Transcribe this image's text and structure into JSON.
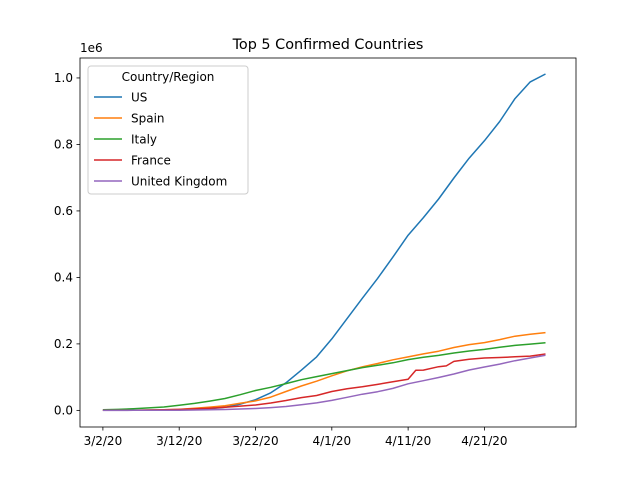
{
  "chart_data": {
    "type": "line",
    "title": "Top 5 Confirmed Countries",
    "xlabel": "",
    "ylabel": "",
    "y_scale_label": "1e6",
    "x_dates": [
      "3/2/20",
      "3/12/20",
      "3/22/20",
      "4/1/20",
      "4/11/20",
      "4/21/20"
    ],
    "x_range": [
      "2020-03-02",
      "2020-04-30"
    ],
    "ylim": [
      -0.05,
      1.06
    ],
    "yticks": [
      0.0,
      0.2,
      0.4,
      0.6,
      0.8,
      1.0
    ],
    "ytick_labels": [
      "0.0",
      "0.2",
      "0.4",
      "0.6",
      "0.8",
      "1.0"
    ],
    "grid": false,
    "legend": {
      "title": "Country/Region",
      "placement": "top-left"
    },
    "series": [
      {
        "name": "US",
        "color": "#1f77b4",
        "points": [
          [
            "2020-03-02",
            0.0001
          ],
          [
            "2020-03-06",
            0.0003
          ],
          [
            "2020-03-10",
            0.001
          ],
          [
            "2020-03-14",
            0.0027
          ],
          [
            "2020-03-16",
            0.0046
          ],
          [
            "2020-03-18",
            0.0092
          ],
          [
            "2020-03-20",
            0.019
          ],
          [
            "2020-03-22",
            0.032
          ],
          [
            "2020-03-24",
            0.053
          ],
          [
            "2020-03-26",
            0.083
          ],
          [
            "2020-03-28",
            0.121
          ],
          [
            "2020-03-30",
            0.161
          ],
          [
            "2020-04-01",
            0.215
          ],
          [
            "2020-04-03",
            0.276
          ],
          [
            "2020-04-05",
            0.337
          ],
          [
            "2020-04-07",
            0.397
          ],
          [
            "2020-04-09",
            0.461
          ],
          [
            "2020-04-11",
            0.527
          ],
          [
            "2020-04-13",
            0.58
          ],
          [
            "2020-04-15",
            0.636
          ],
          [
            "2020-04-17",
            0.699
          ],
          [
            "2020-04-19",
            0.759
          ],
          [
            "2020-04-21",
            0.811
          ],
          [
            "2020-04-23",
            0.869
          ],
          [
            "2020-04-25",
            0.938
          ],
          [
            "2020-04-27",
            0.988
          ],
          [
            "2020-04-29",
            1.012
          ]
        ]
      },
      {
        "name": "Spain",
        "color": "#ff7f0e",
        "points": [
          [
            "2020-03-02",
            0.0001
          ],
          [
            "2020-03-06",
            0.0004
          ],
          [
            "2020-03-10",
            0.0016
          ],
          [
            "2020-03-12",
            0.003
          ],
          [
            "2020-03-14",
            0.0064
          ],
          [
            "2020-03-16",
            0.0098
          ],
          [
            "2020-03-18",
            0.0138
          ],
          [
            "2020-03-20",
            0.0212
          ],
          [
            "2020-03-22",
            0.0284
          ],
          [
            "2020-03-24",
            0.0399
          ],
          [
            "2020-03-26",
            0.0569
          ],
          [
            "2020-03-28",
            0.0732
          ],
          [
            "2020-03-30",
            0.0877
          ],
          [
            "2020-04-01",
            0.104
          ],
          [
            "2020-04-03",
            0.119
          ],
          [
            "2020-04-05",
            0.131
          ],
          [
            "2020-04-07",
            0.141
          ],
          [
            "2020-04-09",
            0.152
          ],
          [
            "2020-04-11",
            0.161
          ],
          [
            "2020-04-13",
            0.17
          ],
          [
            "2020-04-15",
            0.178
          ],
          [
            "2020-04-17",
            0.189
          ],
          [
            "2020-04-19",
            0.198
          ],
          [
            "2020-04-21",
            0.204
          ],
          [
            "2020-04-23",
            0.213
          ],
          [
            "2020-04-25",
            0.223
          ],
          [
            "2020-04-27",
            0.229
          ],
          [
            "2020-04-29",
            0.234
          ]
        ]
      },
      {
        "name": "Italy",
        "color": "#2ca02c",
        "points": [
          [
            "2020-03-02",
            0.002
          ],
          [
            "2020-03-04",
            0.003
          ],
          [
            "2020-03-06",
            0.0046
          ],
          [
            "2020-03-08",
            0.0074
          ],
          [
            "2020-03-10",
            0.0101
          ],
          [
            "2020-03-12",
            0.0155
          ],
          [
            "2020-03-14",
            0.0211
          ],
          [
            "2020-03-16",
            0.0278
          ],
          [
            "2020-03-18",
            0.0357
          ],
          [
            "2020-03-20",
            0.0471
          ],
          [
            "2020-03-22",
            0.0597
          ],
          [
            "2020-03-24",
            0.0693
          ],
          [
            "2020-03-26",
            0.0805
          ],
          [
            "2020-03-28",
            0.0924
          ],
          [
            "2020-03-30",
            0.1017
          ],
          [
            "2020-04-01",
            0.1105
          ],
          [
            "2020-04-03",
            0.1196
          ],
          [
            "2020-04-05",
            0.1287
          ],
          [
            "2020-04-07",
            0.1355
          ],
          [
            "2020-04-09",
            0.1432
          ],
          [
            "2020-04-11",
            0.1527
          ],
          [
            "2020-04-13",
            0.1597
          ],
          [
            "2020-04-15",
            0.1655
          ],
          [
            "2020-04-17",
            0.1725
          ],
          [
            "2020-04-19",
            0.1785
          ],
          [
            "2020-04-21",
            0.1833
          ],
          [
            "2020-04-23",
            0.1896
          ],
          [
            "2020-04-25",
            0.1955
          ],
          [
            "2020-04-27",
            0.1994
          ],
          [
            "2020-04-29",
            0.2034
          ]
        ]
      },
      {
        "name": "France",
        "color": "#d62728",
        "points": [
          [
            "2020-03-02",
            0.0002
          ],
          [
            "2020-03-06",
            0.0006
          ],
          [
            "2020-03-10",
            0.0018
          ],
          [
            "2020-03-12",
            0.0029
          ],
          [
            "2020-03-14",
            0.0045
          ],
          [
            "2020-03-16",
            0.0067
          ],
          [
            "2020-03-18",
            0.0094
          ],
          [
            "2020-03-20",
            0.0129
          ],
          [
            "2020-03-22",
            0.0163
          ],
          [
            "2020-03-24",
            0.0222
          ],
          [
            "2020-03-26",
            0.0297
          ],
          [
            "2020-03-28",
            0.0383
          ],
          [
            "2020-03-30",
            0.0449
          ],
          [
            "2020-04-01",
            0.0567
          ],
          [
            "2020-04-03",
            0.0651
          ],
          [
            "2020-04-05",
            0.0708
          ],
          [
            "2020-04-07",
            0.0782
          ],
          [
            "2020-04-09",
            0.0863
          ],
          [
            "2020-04-11",
            0.0935
          ],
          [
            "2020-04-12",
            0.1206
          ],
          [
            "2020-04-13",
            0.1213
          ],
          [
            "2020-04-15",
            0.1315
          ],
          [
            "2020-04-16",
            0.1339
          ],
          [
            "2020-04-17",
            0.1473
          ],
          [
            "2020-04-19",
            0.1536
          ],
          [
            "2020-04-21",
            0.1576
          ],
          [
            "2020-04-23",
            0.1592
          ],
          [
            "2020-04-25",
            0.1613
          ],
          [
            "2020-04-27",
            0.1634
          ],
          [
            "2020-04-29",
            0.1696
          ]
        ]
      },
      {
        "name": "United Kingdom",
        "color": "#9467bd",
        "points": [
          [
            "2020-03-02",
            0.0
          ],
          [
            "2020-03-06",
            0.0002
          ],
          [
            "2020-03-10",
            0.0004
          ],
          [
            "2020-03-12",
            0.0006
          ],
          [
            "2020-03-14",
            0.0011
          ],
          [
            "2020-03-16",
            0.0016
          ],
          [
            "2020-03-18",
            0.0027
          ],
          [
            "2020-03-20",
            0.004
          ],
          [
            "2020-03-22",
            0.0058
          ],
          [
            "2020-03-24",
            0.0084
          ],
          [
            "2020-03-26",
            0.0116
          ],
          [
            "2020-03-28",
            0.017
          ],
          [
            "2020-03-30",
            0.0224
          ],
          [
            "2020-04-01",
            0.0301
          ],
          [
            "2020-04-03",
            0.0392
          ],
          [
            "2020-04-05",
            0.0488
          ],
          [
            "2020-04-07",
            0.0562
          ],
          [
            "2020-04-09",
            0.0661
          ],
          [
            "2020-04-11",
            0.08
          ],
          [
            "2020-04-13",
            0.0893
          ],
          [
            "2020-04-15",
            0.0988
          ],
          [
            "2020-04-17",
            0.1093
          ],
          [
            "2020-04-19",
            0.1214
          ],
          [
            "2020-04-21",
            0.1306
          ],
          [
            "2020-04-23",
            0.1393
          ],
          [
            "2020-04-25",
            0.1493
          ],
          [
            "2020-04-27",
            0.1577
          ],
          [
            "2020-04-29",
            0.1659
          ]
        ]
      }
    ]
  }
}
